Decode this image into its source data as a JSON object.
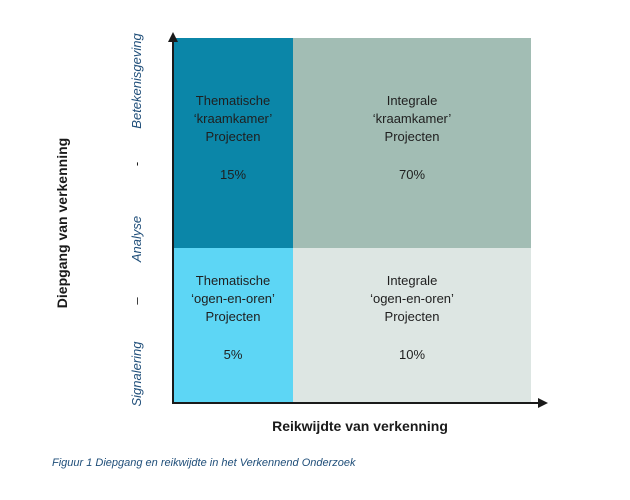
{
  "colors": {
    "top_left": "#0b86a8",
    "top_right": "#a2bdb4",
    "bottom_left": "#5dd6f5",
    "bottom_right": "#dde6e3",
    "axis": "#1a1a1a",
    "scale_text": "#1f4e79"
  },
  "quadrants": {
    "top_left": {
      "line1": "Thematische",
      "line2": "‘kraamkamer’",
      "line3": "Projecten",
      "pct": "15%"
    },
    "top_right": {
      "line1": "Integrale",
      "line2": "‘kraamkamer’",
      "line3": "Projecten",
      "pct": "70%"
    },
    "bottom_left": {
      "line1": "Thematische",
      "line2": "‘ogen-en-oren’",
      "line3": "Projecten",
      "pct": "5%"
    },
    "bottom_right": {
      "line1": "Integrale",
      "line2": "‘ogen-en-oren’",
      "line3": "Projecten",
      "pct": "10%"
    }
  },
  "axes": {
    "x_title": "Reikwijdte van verkenning",
    "y_title": "Diepgang van verkenning",
    "y_scale": {
      "low": "Signalering",
      "dash1": "–",
      "mid": "Analyse",
      "dash2": "-",
      "high": "Betekenisgeving"
    }
  },
  "caption": "Figuur 1 Diepgang en reikwijdte in het Verkennend Onderzoek"
}
